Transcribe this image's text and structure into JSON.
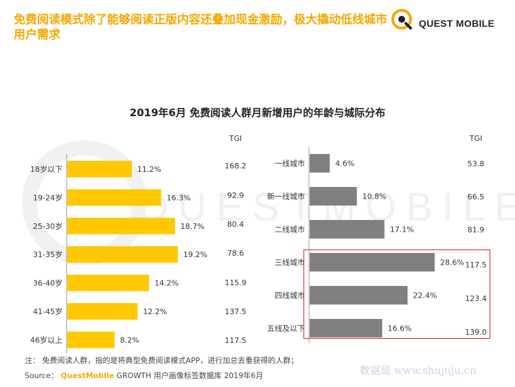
{
  "header": {
    "headline": "免费阅读模式除了能够阅读正版内容还叠加现金激励，极大撬动低线城市用户需求",
    "brand": "QUEST MOBILE"
  },
  "watermark": "QUESTMOBILE",
  "colors": {
    "accent": "#F5A800",
    "age_bar": "#FFC800",
    "city_bar": "#808080",
    "highlight": "#E02020"
  },
  "chart_data": [
    {
      "type": "bar",
      "orientation": "horizontal",
      "title": "2019年6月 免费阅读人群月新增用户的年龄与城际分布",
      "categories": [
        "18岁以下",
        "19-24岁",
        "25-30岁",
        "31-35岁",
        "36-40岁",
        "41-45岁",
        "46岁以上"
      ],
      "values": [
        11.2,
        16.3,
        18.7,
        19.2,
        14.2,
        12.2,
        8.2
      ],
      "value_labels": [
        "11.2%",
        "16.3%",
        "18.7%",
        "19.2%",
        "14.2%",
        "12.2%",
        "8.2%"
      ],
      "tgi_label": "TGI",
      "tgi": [
        "168.2",
        "92.9",
        "80.4",
        "78.6",
        "115.9",
        "137.5",
        "117.5"
      ],
      "xlim": [
        0,
        19.2
      ]
    },
    {
      "type": "bar",
      "orientation": "horizontal",
      "categories": [
        "一线城市",
        "新一线城市",
        "二线城市",
        "三线城市",
        "四线城市",
        "五线及以下"
      ],
      "values": [
        4.6,
        10.8,
        17.1,
        28.6,
        22.4,
        16.6
      ],
      "value_labels": [
        "4.6%",
        "10.8%",
        "17.1%",
        "28.6%",
        "22.4%",
        "16.6%"
      ],
      "tgi_label": "TGI",
      "tgi": [
        "53.8",
        "66.5",
        "81.9",
        "117.5",
        "123.4",
        "139.0"
      ],
      "xlim": [
        0,
        28.6
      ],
      "highlighted_categories": [
        "三线城市",
        "四线城市",
        "五线及以下"
      ]
    }
  ],
  "footnote": "注： 免费阅读人群，指的是将典型免费阅读模式APP，进行加总去重获得的人群；",
  "source": {
    "prefix": "Source：",
    "brand": "QuestMobile",
    "text": " GROWTH 用户画像标签数据库 2019年6月"
  },
  "site_watermark": "数据局 www.shujuju.cn"
}
